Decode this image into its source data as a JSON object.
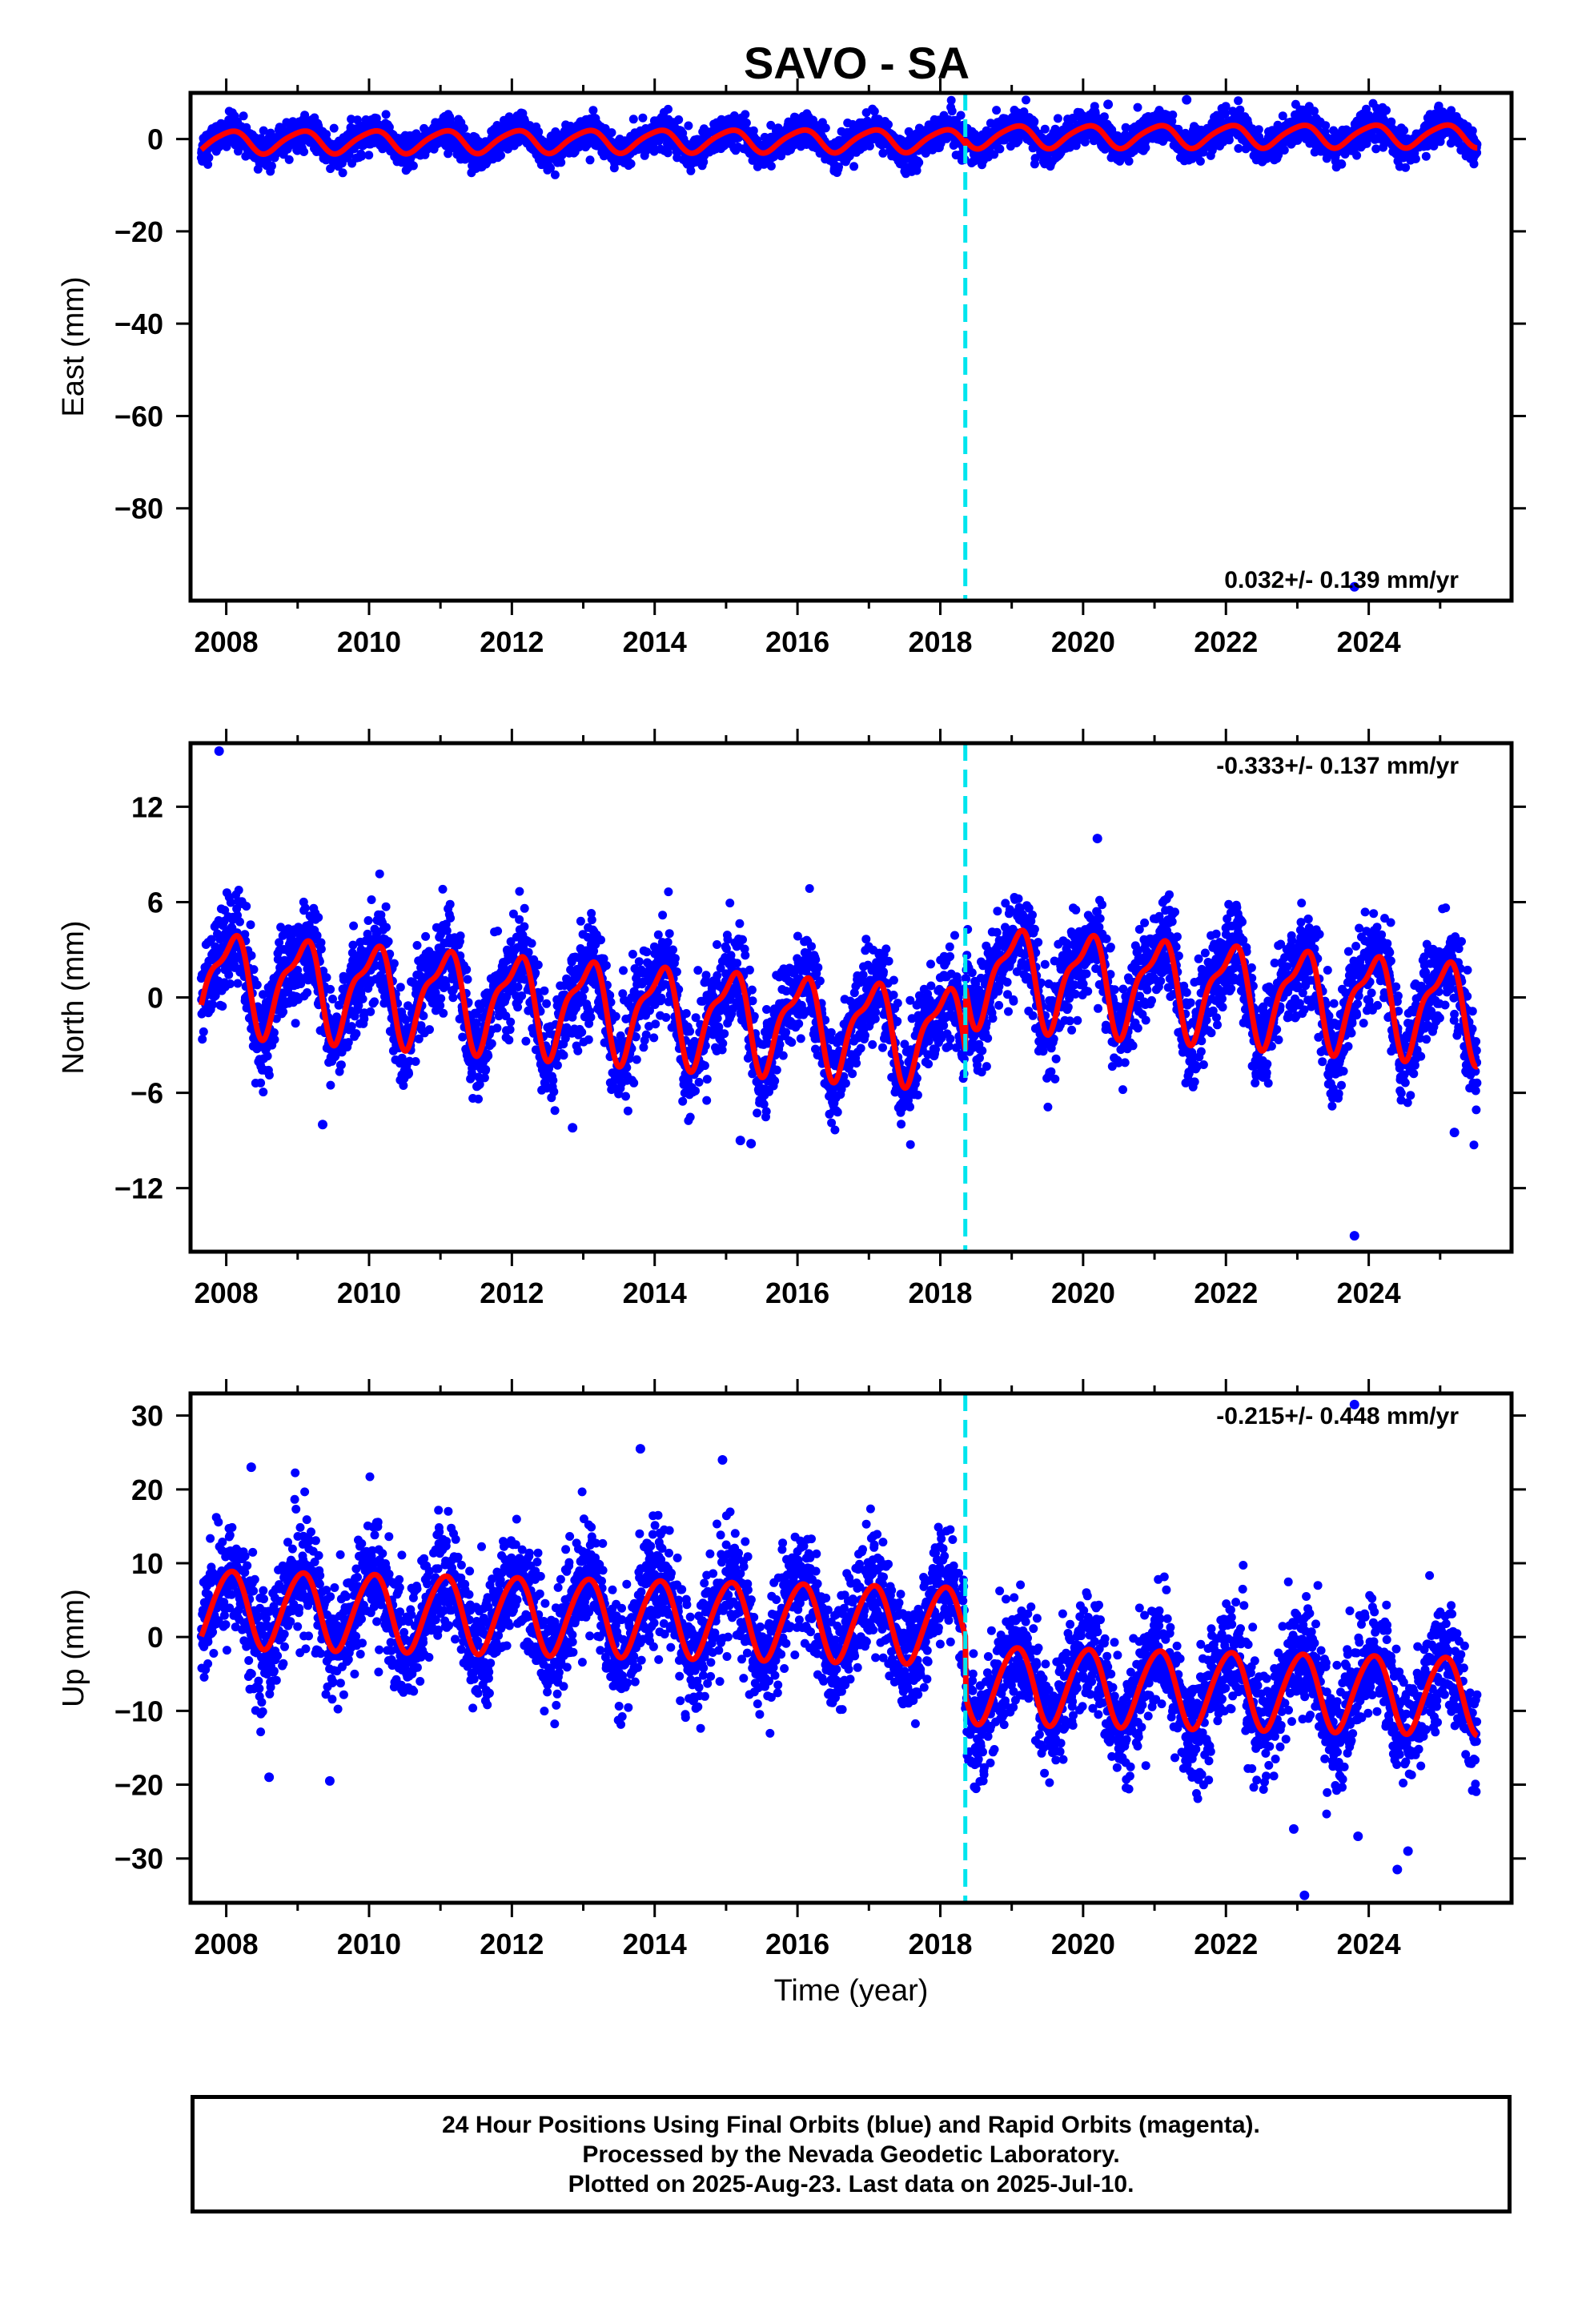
{
  "chart_data": {
    "type": "scatter",
    "title": "SAVO - SA",
    "xlabel": "Time (year)",
    "x_range": [
      2007.5,
      2026.0
    ],
    "x_ticks": [
      2008,
      2010,
      2012,
      2014,
      2016,
      2018,
      2020,
      2022,
      2024
    ],
    "offset_epoch": 2018.35,
    "series_colors": {
      "final_orbits": "#0000ff",
      "model_fit": "#ff0000",
      "offset_marker": "#00e5ee"
    },
    "panels": [
      {
        "name": "East",
        "ylabel": "East (mm)",
        "ylim": [
          -100,
          10
        ],
        "y_ticks": [
          0,
          -20,
          -40,
          -60,
          -80
        ],
        "rate_text": "0.032+/- 0.139 mm/yr",
        "rate_position": "bottom-right",
        "model": {
          "trend_mm_per_yr": 0.032,
          "level_start": -0.6,
          "annual_amp": 2.4,
          "semiannual_amp": 0.4,
          "offset_jump": 0.8,
          "scatter_sd": 1.7
        },
        "outliers": [
          {
            "x": 2023.8,
            "y": -97
          },
          {
            "x": 2021.45,
            "y": 8.5
          },
          {
            "x": 2020.35,
            "y": 7.5
          }
        ]
      },
      {
        "name": "North",
        "ylabel": "North (mm)",
        "ylim": [
          -16,
          16
        ],
        "y_ticks": [
          12,
          6,
          0,
          -6,
          -12
        ],
        "rate_text": "-0.333+/- 0.137 mm/yr",
        "rate_position": "top-right",
        "model": {
          "trend_mm_per_yr": -0.333,
          "level_start": 1.2,
          "annual_amp": 2.8,
          "semiannual_amp": 1.0,
          "offset_jump": 4.0,
          "scatter_sd": 1.5
        },
        "outliers": [
          {
            "x": 2007.9,
            "y": 15.5
          },
          {
            "x": 2020.2,
            "y": 10
          },
          {
            "x": 2009.35,
            "y": -8
          },
          {
            "x": 2015.2,
            "y": -9
          },
          {
            "x": 2015.35,
            "y": -9.2
          },
          {
            "x": 2012.85,
            "y": -8.2
          },
          {
            "x": 2023.8,
            "y": -15
          },
          {
            "x": 2025.2,
            "y": -8.5
          }
        ]
      },
      {
        "name": "Up",
        "ylabel": "Up (mm)",
        "ylim": [
          -36,
          33
        ],
        "y_ticks": [
          30,
          20,
          10,
          0,
          -10,
          -20,
          -30
        ],
        "rate_text": "-0.215+/- 0.448 mm/yr",
        "rate_position": "top-right",
        "model": {
          "trend_mm_per_yr": -0.215,
          "level_start": 4.0,
          "annual_amp": 5.2,
          "semiannual_amp": 0.5,
          "offset_jump": -8.0,
          "scatter_sd": 3.8
        },
        "outliers": [
          {
            "x": 2008.35,
            "y": 23
          },
          {
            "x": 2013.8,
            "y": 25.5
          },
          {
            "x": 2014.95,
            "y": 24
          },
          {
            "x": 2023.8,
            "y": 31.5
          },
          {
            "x": 2008.6,
            "y": -19
          },
          {
            "x": 2009.45,
            "y": -19.5
          },
          {
            "x": 2023.1,
            "y": -35
          },
          {
            "x": 2023.85,
            "y": -27
          },
          {
            "x": 2024.4,
            "y": -31.5
          },
          {
            "x": 2024.55,
            "y": -29
          },
          {
            "x": 2022.95,
            "y": -26
          }
        ]
      }
    ]
  },
  "footer": {
    "line1": "24 Hour Positions Using Final Orbits (blue) and Rapid Orbits (magenta).",
    "line2": "Processed by the Nevada Geodetic Laboratory.",
    "line3": "Plotted on 2025-Aug-23. Last data on 2025-Jul-10."
  }
}
